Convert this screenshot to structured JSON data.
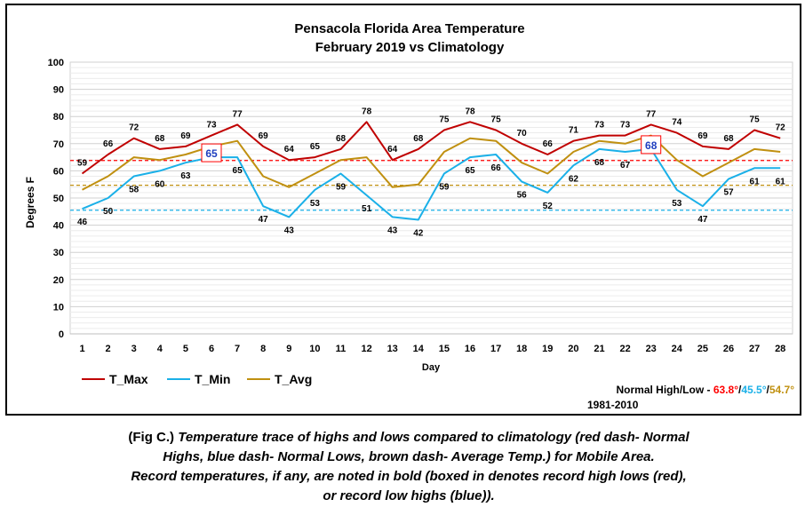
{
  "chart_data": {
    "type": "line",
    "title": "Pensacola Florida Area Temperature",
    "subtitle": "February 2019 vs Climatology",
    "xlabel": "Day",
    "ylabel": "Degrees F",
    "ylim": [
      0,
      100
    ],
    "yticks": [
      0,
      10,
      20,
      30,
      40,
      50,
      60,
      70,
      80,
      90,
      100
    ],
    "grid": true,
    "legend_position": "bottom-left",
    "x": [
      1,
      2,
      3,
      4,
      5,
      6,
      7,
      8,
      9,
      10,
      11,
      12,
      13,
      14,
      15,
      16,
      17,
      18,
      19,
      20,
      21,
      22,
      23,
      24,
      25,
      26,
      27,
      28
    ],
    "series": [
      {
        "name": "T_Max",
        "color": "#c00000",
        "values": [
          59,
          66,
          72,
          68,
          69,
          73,
          77,
          69,
          64,
          65,
          68,
          78,
          64,
          68,
          75,
          78,
          75,
          70,
          66,
          71,
          73,
          73,
          77,
          74,
          69,
          68,
          75,
          72
        ]
      },
      {
        "name": "T_Min",
        "color": "#1ab0e8",
        "values": [
          46,
          50,
          58,
          60,
          63,
          65,
          65,
          47,
          43,
          53,
          59,
          51,
          43,
          42,
          59,
          65,
          66,
          56,
          52,
          62,
          68,
          67,
          68,
          53,
          47,
          57,
          61,
          61
        ]
      },
      {
        "name": "T_Avg",
        "color": "#c09010",
        "values": [
          53,
          58,
          65,
          64,
          66,
          69,
          71,
          58,
          54,
          59,
          64,
          65,
          54,
          55,
          67,
          72,
          71,
          63,
          59,
          67,
          71,
          70,
          73,
          64,
          58,
          63,
          68,
          67
        ]
      }
    ],
    "normals": [
      {
        "value": 63.8,
        "color": "#ff0000"
      },
      {
        "value": 45.5,
        "color": "#1ab0e8"
      },
      {
        "value": 54.7,
        "color": "#c09010"
      }
    ],
    "boxed_records": [
      {
        "day": 6,
        "value": 65,
        "series": "T_Min"
      },
      {
        "day": 23,
        "value": 68,
        "series": "T_Min"
      }
    ]
  },
  "normals_text": {
    "label": "Normal High/Low - ",
    "high": "63.8°",
    "sep1": "/",
    "low": "45.5°",
    "sep2": "/",
    "avg": "54.7°",
    "period": "1981-2010"
  },
  "caption": {
    "prefix": "(Fig C.) ",
    "line1": "Temperature trace of highs and lows compared to climatology (red dash- Normal",
    "line2": "Highs, blue dash- Normal Lows, brown dash- Average Temp.) for Mobile Area.",
    "line3": "Record temperatures, if any, are noted in bold (boxed in denotes record high lows (red),",
    "line4": "or record low highs (blue))."
  }
}
